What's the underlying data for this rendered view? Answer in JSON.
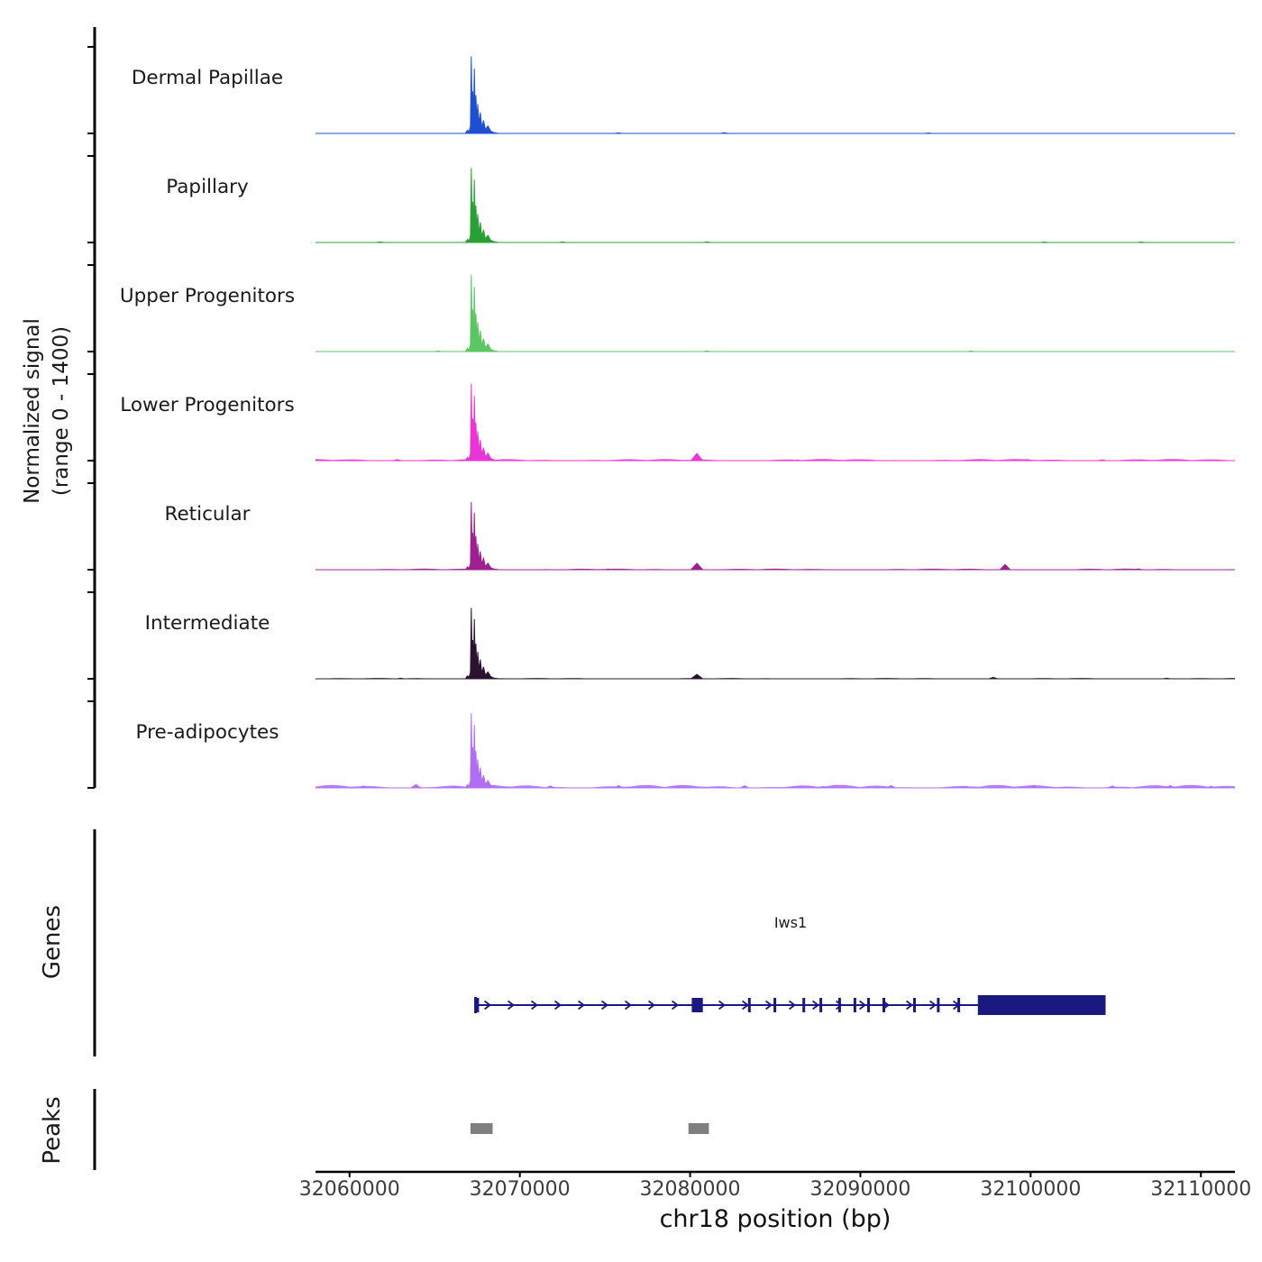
{
  "chart_data": {
    "type": "area",
    "title": "",
    "xlabel": "chr18 position (bp)",
    "ylabel": "Normalized signal\n(range 0 - 1400)",
    "x_range": [
      32058000,
      32112000
    ],
    "track_ylim": [
      0,
      1400
    ],
    "grid": false,
    "x_ticks": [
      32060000,
      32070000,
      32080000,
      32090000,
      32100000,
      32110000
    ],
    "x_tick_labels": [
      "32060000",
      "32070000",
      "32080000",
      "32090000",
      "32100000",
      "32110000"
    ],
    "main_peak_shape": [
      [
        -650,
        0
      ],
      [
        -520,
        60
      ],
      [
        -440,
        22
      ],
      [
        -350,
        130
      ],
      [
        -300,
        1390
      ],
      [
        -255,
        420
      ],
      [
        -210,
        760
      ],
      [
        -165,
        290
      ],
      [
        -120,
        1170
      ],
      [
        -75,
        380
      ],
      [
        -30,
        690
      ],
      [
        25,
        250
      ],
      [
        80,
        530
      ],
      [
        150,
        165
      ],
      [
        230,
        380
      ],
      [
        320,
        115
      ],
      [
        420,
        235
      ],
      [
        530,
        70
      ],
      [
        680,
        135
      ],
      [
        840,
        42
      ],
      [
        1010,
        16
      ],
      [
        1300,
        0
      ]
    ],
    "tracks": [
      {
        "label": "Dermal Papillae",
        "color": "#1f4fd1",
        "center": 32067450,
        "scale": 1.0,
        "noise": 6,
        "extras": [
          [
            32075800,
            10,
            200
          ],
          [
            32082000,
            14,
            200
          ],
          [
            32094000,
            8,
            200
          ]
        ]
      },
      {
        "label": "Papillary",
        "color": "#28a035",
        "center": 32067450,
        "scale": 0.97,
        "noise": 8,
        "extras": [
          [
            32061800,
            12,
            200
          ],
          [
            32072500,
            9,
            200
          ],
          [
            32081000,
            12,
            200
          ],
          [
            32100800,
            10,
            200
          ],
          [
            32106500,
            9,
            200
          ]
        ]
      },
      {
        "label": "Upper Progenitors",
        "color": "#5bc763",
        "center": 32067450,
        "scale": 1.0,
        "noise": 6,
        "extras": [
          [
            32065200,
            9,
            200
          ],
          [
            32081000,
            11,
            200
          ],
          [
            32096500,
            9,
            200
          ]
        ]
      },
      {
        "label": "Lower Progenitors",
        "color": "#e935d6",
        "center": 32067450,
        "scale": 1.0,
        "noise": 30,
        "extras": [
          [
            32062800,
            18,
            250
          ],
          [
            32080400,
            130,
            350
          ],
          [
            32086300,
            12,
            200
          ],
          [
            32099800,
            20,
            250
          ],
          [
            32104200,
            15,
            250
          ],
          [
            32108800,
            13,
            250
          ]
        ]
      },
      {
        "label": "Reticular",
        "color": "#9c2090",
        "center": 32067450,
        "scale": 0.88,
        "noise": 20,
        "extras": [
          [
            32075200,
            12,
            200
          ],
          [
            32080400,
            115,
            350
          ],
          [
            32098500,
            95,
            300
          ],
          [
            32106300,
            14,
            250
          ]
        ]
      },
      {
        "label": "Intermediate",
        "color": "#2b1230",
        "center": 32067450,
        "scale": 0.92,
        "noise": 15,
        "extras": [
          [
            32063000,
            10,
            200
          ],
          [
            32080400,
            80,
            350
          ],
          [
            32097800,
            26,
            250
          ],
          [
            32108000,
            10,
            200
          ]
        ]
      },
      {
        "label": "Pre-adipocytes",
        "color": "#b16ef2",
        "center": 32067450,
        "scale": 0.97,
        "noise": 55,
        "extras": [
          [
            32060800,
            35,
            250
          ],
          [
            32063900,
            60,
            300
          ],
          [
            32066200,
            28,
            200
          ],
          [
            32071800,
            35,
            250
          ],
          [
            32075800,
            40,
            250
          ],
          [
            32079200,
            28,
            250
          ],
          [
            32083200,
            38,
            250
          ],
          [
            32087800,
            25,
            250
          ],
          [
            32091800,
            40,
            250
          ],
          [
            32096200,
            28,
            250
          ],
          [
            32100200,
            48,
            250
          ],
          [
            32104800,
            34,
            250
          ],
          [
            32108200,
            40,
            250
          ],
          [
            32110600,
            28,
            250
          ]
        ]
      }
    ],
    "gene_color": "#191980",
    "peak_color": "#7f7f7f",
    "axis_color": "#000000",
    "baseline_color": "#4d4d4d",
    "gene_track": {
      "label": "Genes",
      "genes": [
        {
          "name": "Iws1",
          "start": 32067400,
          "end": 32104400,
          "strand": "+",
          "exons": [
            [
              32067400,
              32067600
            ],
            [
              32080100,
              32080750
            ],
            [
              32083400,
              32083560
            ],
            [
              32084900,
              32085060
            ],
            [
              32086600,
              32086760
            ],
            [
              32087600,
              32087760
            ],
            [
              32088700,
              32088860
            ],
            [
              32089600,
              32089760
            ],
            [
              32090400,
              32090560
            ],
            [
              32091300,
              32091460
            ],
            [
              32093100,
              32093260
            ],
            [
              32094500,
              32094660
            ],
            [
              32095700,
              32095860
            ]
          ],
          "thick_exon": [
            32096900,
            32104400
          ]
        }
      ]
    },
    "peaks_track": {
      "label": "Peaks",
      "peaks": [
        [
          32067100,
          32068400
        ],
        [
          32079900,
          32081100
        ]
      ]
    }
  }
}
